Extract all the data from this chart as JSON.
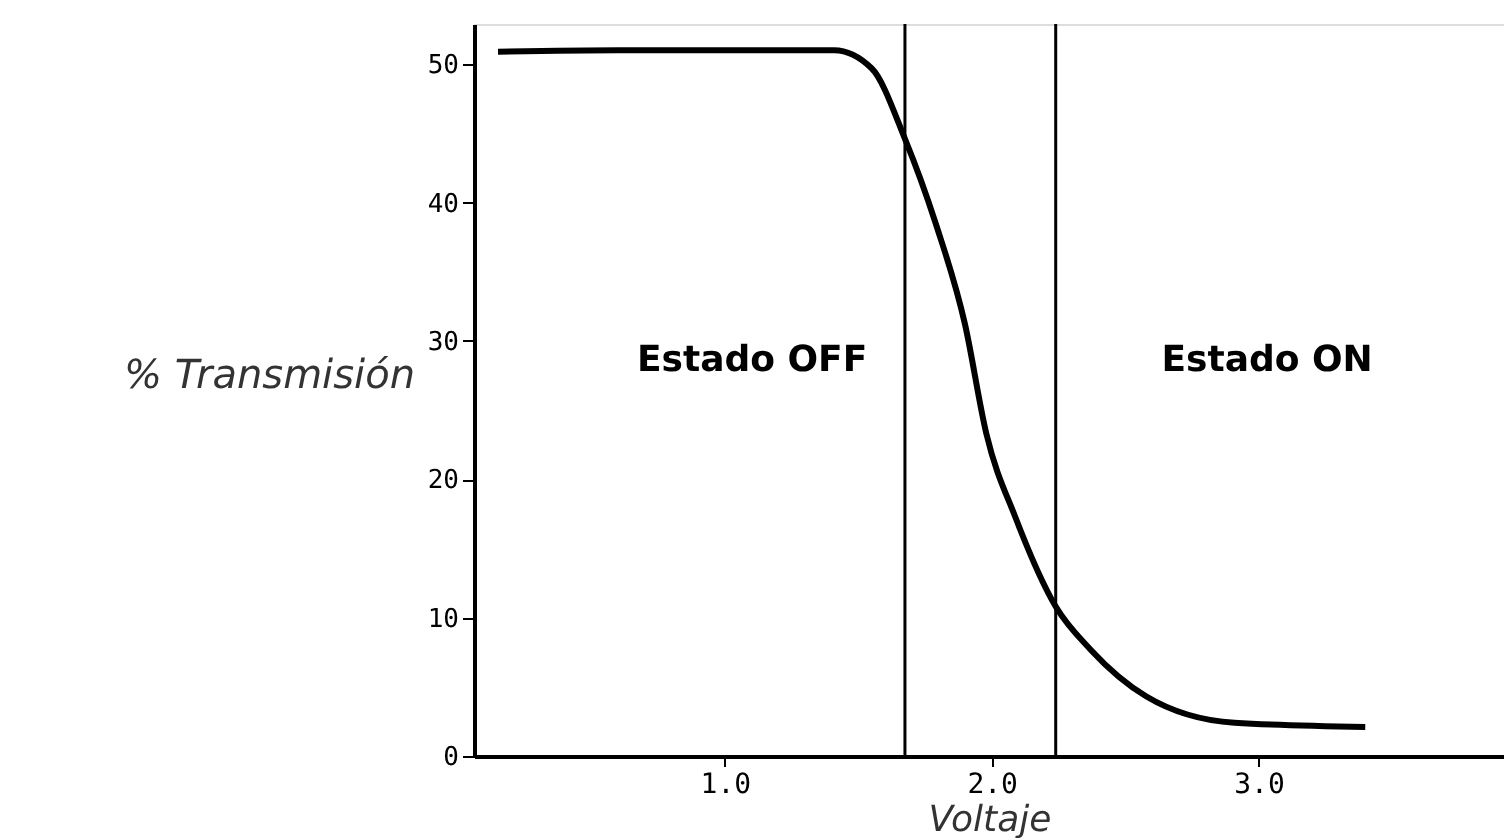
{
  "chart_data": {
    "type": "line",
    "xlabel": "Voltaje",
    "ylabel": "% Transmisión",
    "x": [
      0.15,
      0.6,
      1.0,
      1.41,
      1.55,
      1.675,
      1.79,
      1.9,
      1.98,
      2.09,
      2.24,
      2.37,
      2.58,
      2.91,
      3.4
    ],
    "series": [
      {
        "color": "#000000",
        "values": [
          50.9,
          51,
          51,
          51,
          49.7,
          44.6,
          38.5,
          31.2,
          23.3,
          17.2,
          10.8,
          7.7,
          4.3,
          2.4,
          2.1
        ]
      }
    ],
    "xlim": [
      0.06,
      3.92
    ],
    "ylim": [
      0,
      52.9
    ],
    "xticks": [
      {
        "value": 1,
        "label": "1.0"
      },
      {
        "value": 2,
        "label": "2.0"
      },
      {
        "value": 3,
        "label": "3.0"
      }
    ],
    "yticks": [
      0,
      10,
      20,
      30,
      40,
      50
    ],
    "ref_lines": [
      {
        "axis": "x",
        "value": 1.675,
        "color": "#000000"
      },
      {
        "axis": "x",
        "value": 2.24,
        "color": "#000000"
      }
    ],
    "annotations": [
      "Estado OFF",
      "Estado ON"
    ],
    "grid": false,
    "marker": "none",
    "line_style": "solid"
  }
}
